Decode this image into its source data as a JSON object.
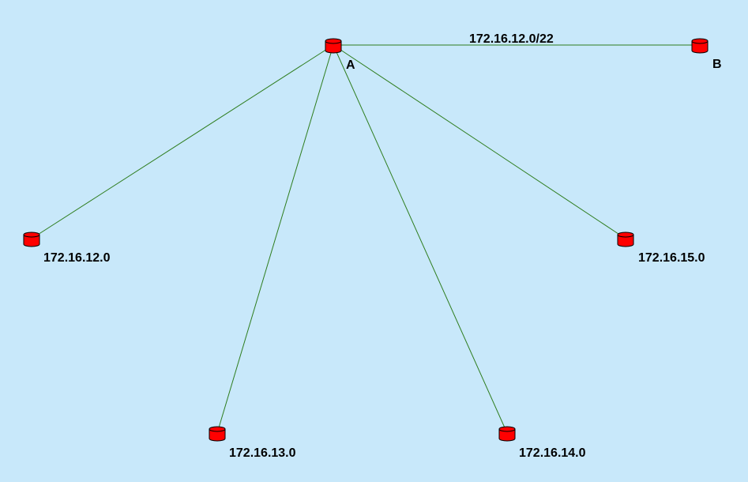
{
  "colors": {
    "background": "#c8e8fa",
    "link": "#2e7d1e",
    "router_fill": "#ff0000",
    "router_stroke": "#000000"
  },
  "diagram": {
    "top_link_label": "172.16.12.0/22",
    "nodes": {
      "a": {
        "label": "A",
        "icon": "router-icon"
      },
      "b": {
        "label": "B",
        "icon": "router-icon"
      },
      "n12": {
        "label": "172.16.12.0",
        "icon": "router-icon"
      },
      "n13": {
        "label": "172.16.13.0",
        "icon": "router-icon"
      },
      "n14": {
        "label": "172.16.14.0",
        "icon": "router-icon"
      },
      "n15": {
        "label": "172.16.15.0",
        "icon": "router-icon"
      }
    }
  }
}
